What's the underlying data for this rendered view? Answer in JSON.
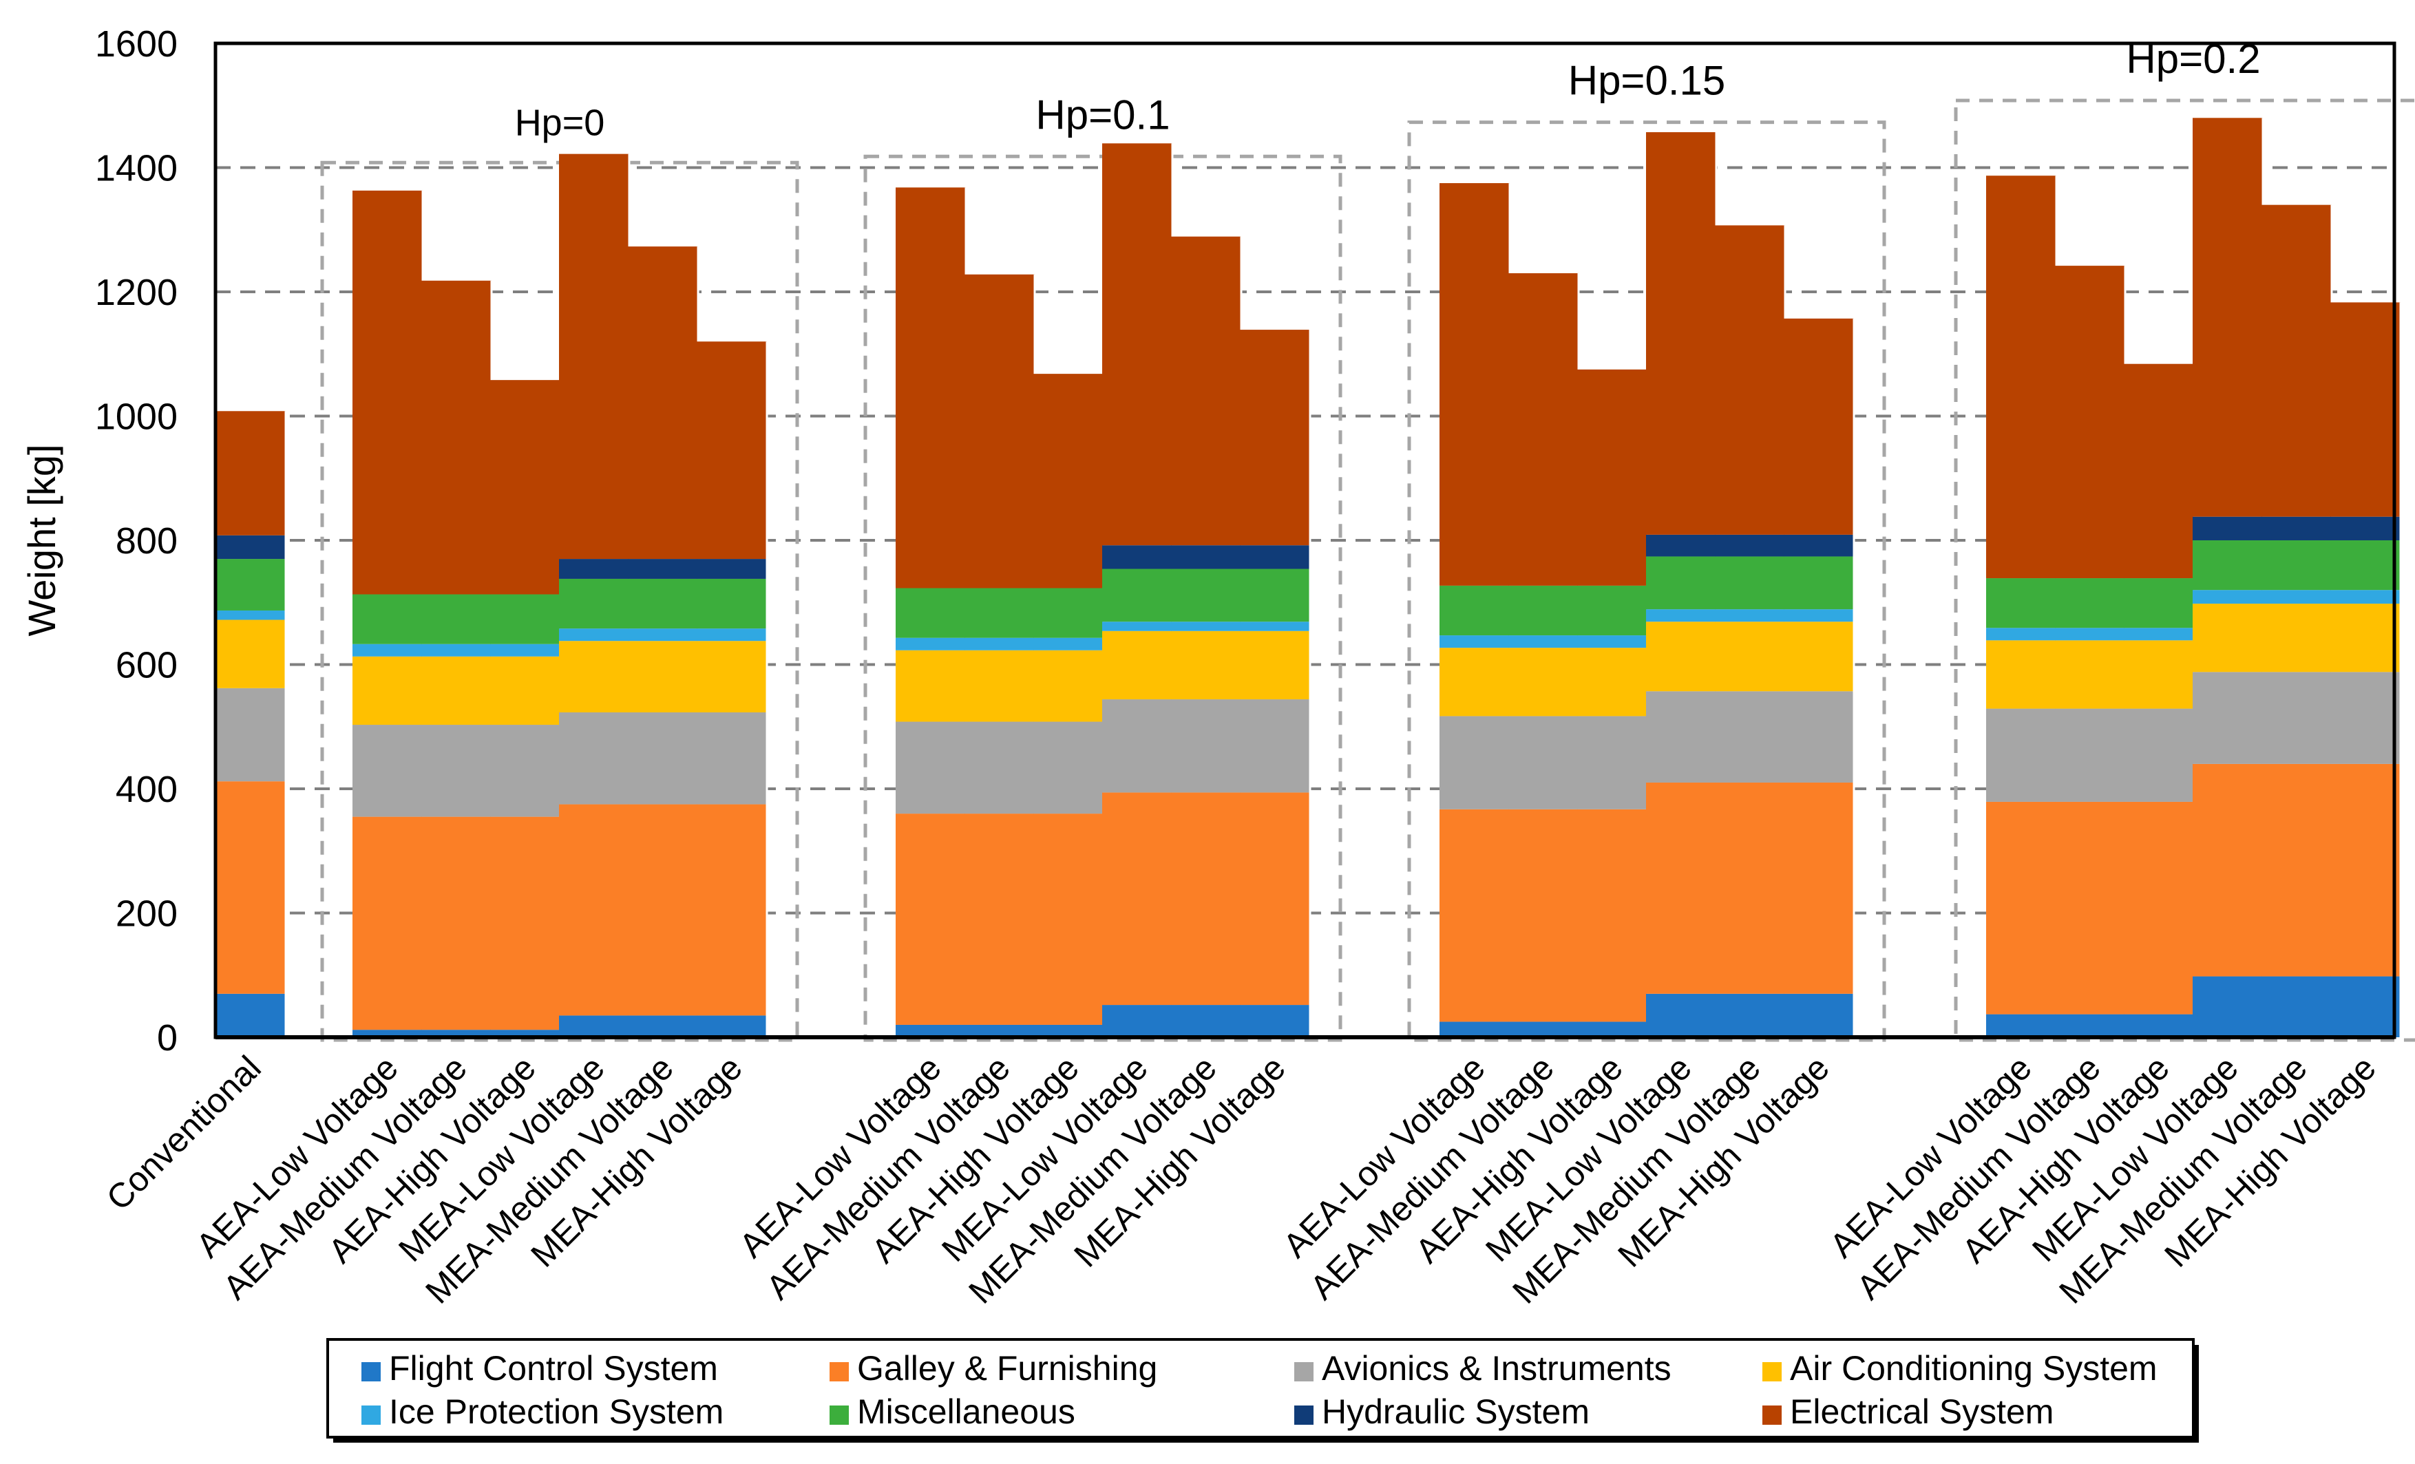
{
  "chart_data": {
    "type": "bar",
    "stacked": true,
    "title": "",
    "xlabel": "",
    "ylabel": "Weight [kg]",
    "ylim": [
      0,
      1600
    ],
    "yticks": [
      0,
      200,
      400,
      600,
      800,
      1000,
      1200,
      1400,
      1600
    ],
    "grid": "horizontal-dashed",
    "legend_position": "bottom",
    "categories": [
      "Conventional",
      "AEA-Low Voltage",
      "AEA-Medium Voltage",
      "AEA-High Voltage",
      "MEA-Low Voltage",
      "MEA-Medium Voltage",
      "MEA-High Voltage",
      "AEA-Low Voltage",
      "AEA-Medium Voltage",
      "AEA-High Voltage",
      "MEA-Low Voltage",
      "MEA-Medium Voltage",
      "MEA-High Voltage",
      "AEA-Low Voltage",
      "AEA-Medium Voltage",
      "AEA-High Voltage",
      "MEA-Low Voltage",
      "MEA-Medium Voltage",
      "MEA-High Voltage",
      "AEA-Low Voltage",
      "AEA-Medium Voltage",
      "AEA-High Voltage",
      "MEA-Low Voltage",
      "MEA-Medium Voltage",
      "MEA-High Voltage"
    ],
    "groups": [
      {
        "label": "Hp=0",
        "start": 1,
        "end": 6
      },
      {
        "label": "Hp=0.1",
        "start": 7,
        "end": 12
      },
      {
        "label": "Hp=0.15",
        "start": 13,
        "end": 18
      },
      {
        "label": "Hp=0.2",
        "start": 19,
        "end": 24
      }
    ],
    "series": [
      {
        "name": "Flight Control System",
        "color": "#2078c8",
        "values": [
          70,
          12,
          12,
          12,
          35,
          35,
          35,
          20,
          20,
          20,
          52,
          52,
          52,
          25,
          25,
          25,
          70,
          70,
          70,
          37,
          37,
          37,
          98,
          98,
          98
        ]
      },
      {
        "name": "Galley & Furnishing",
        "color": "#fb7f26",
        "values": [
          342,
          343,
          343,
          343,
          340,
          340,
          340,
          340,
          340,
          340,
          342,
          342,
          342,
          342,
          342,
          342,
          340,
          340,
          340,
          342,
          342,
          342,
          342,
          342,
          342
        ]
      },
      {
        "name": "Avionics & Instruments",
        "color": "#a6a6a6",
        "values": [
          150,
          148,
          148,
          148,
          148,
          148,
          148,
          148,
          148,
          148,
          150,
          150,
          150,
          150,
          150,
          150,
          147,
          147,
          147,
          150,
          150,
          150,
          148,
          148,
          148
        ]
      },
      {
        "name": "Air Conditioning System",
        "color": "#ffc000",
        "values": [
          110,
          110,
          110,
          110,
          115,
          115,
          115,
          115,
          115,
          115,
          110,
          110,
          110,
          110,
          110,
          110,
          112,
          112,
          112,
          110,
          110,
          110,
          110,
          110,
          110
        ]
      },
      {
        "name": "Ice Protection System",
        "color": "#30a8e2",
        "values": [
          15,
          20,
          20,
          20,
          20,
          20,
          20,
          20,
          20,
          20,
          15,
          15,
          15,
          20,
          20,
          20,
          20,
          20,
          20,
          20,
          20,
          20,
          22,
          22,
          22
        ]
      },
      {
        "name": "Miscellaneous",
        "color": "#3cae3c",
        "values": [
          83,
          80,
          80,
          80,
          80,
          80,
          80,
          80,
          80,
          80,
          85,
          85,
          85,
          80,
          80,
          80,
          85,
          85,
          85,
          80,
          80,
          80,
          80,
          80,
          80
        ]
      },
      {
        "name": "Hydraulic System",
        "color": "#103c78",
        "values": [
          38,
          0,
          0,
          0,
          32,
          32,
          32,
          0,
          0,
          0,
          38,
          38,
          38,
          0,
          0,
          0,
          35,
          35,
          35,
          0,
          0,
          0,
          38,
          38,
          38
        ]
      },
      {
        "name": "Electrical System",
        "color": "#b84200",
        "values": [
          200,
          650,
          505,
          345,
          652,
          503,
          350,
          645,
          505,
          345,
          647,
          497,
          347,
          648,
          503,
          348,
          648,
          498,
          348,
          648,
          503,
          345,
          642,
          502,
          345
        ]
      }
    ]
  },
  "legend": {
    "items": [
      {
        "label": "Flight Control System",
        "color": "#2078c8"
      },
      {
        "label": "Galley & Furnishing",
        "color": "#fb7f26"
      },
      {
        "label": "Avionics & Instruments",
        "color": "#a6a6a6"
      },
      {
        "label": "Air Conditioning System",
        "color": "#ffc000"
      },
      {
        "label": "Ice Protection System",
        "color": "#30a8e2"
      },
      {
        "label": "Miscellaneous",
        "color": "#3cae3c"
      },
      {
        "label": "Hydraulic System",
        "color": "#103c78"
      },
      {
        "label": "Electrical System",
        "color": "#b84200"
      }
    ]
  }
}
